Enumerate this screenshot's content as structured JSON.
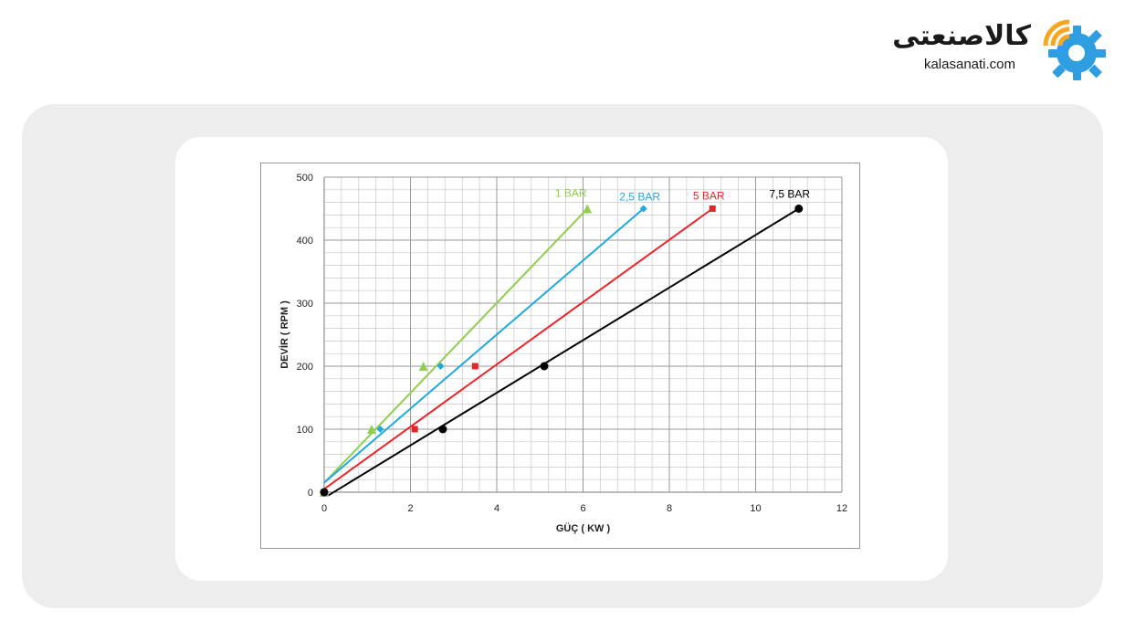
{
  "logo": {
    "name_fa": "کالاصنعتی",
    "domain": "kalasanati.com",
    "colors": {
      "orange": "#f5a623",
      "blue": "#2f9ee0"
    }
  },
  "chart_data": {
    "type": "scatter",
    "xlabel": "GÜÇ ( KW )",
    "ylabel": "DEVİR ( RPM )",
    "xlim": [
      0,
      12
    ],
    "ylim": [
      0,
      500
    ],
    "xticks": [
      0,
      2,
      4,
      6,
      8,
      10,
      12
    ],
    "yticks": [
      0,
      100,
      200,
      300,
      400,
      500
    ],
    "grid": true,
    "series": [
      {
        "name": "1 BAR",
        "color": "#8fce4f",
        "marker": "triangle",
        "points": [
          [
            0,
            0
          ],
          [
            1.1,
            100
          ],
          [
            2.3,
            200
          ],
          [
            6.1,
            450
          ]
        ],
        "trend": [
          [
            0,
            15
          ],
          [
            6.1,
            450
          ]
        ]
      },
      {
        "name": "2,5 BAR",
        "color": "#1fa9e1",
        "marker": "diamond",
        "points": [
          [
            0,
            0
          ],
          [
            1.3,
            100
          ],
          [
            2.7,
            200
          ],
          [
            7.4,
            450
          ]
        ],
        "trend": [
          [
            0,
            15
          ],
          [
            7.4,
            450
          ]
        ]
      },
      {
        "name": "5 BAR",
        "color": "#e8262a",
        "marker": "square",
        "points": [
          [
            0,
            0
          ],
          [
            2.1,
            100
          ],
          [
            3.5,
            200
          ],
          [
            9.0,
            450
          ]
        ],
        "trend": [
          [
            0,
            5
          ],
          [
            9.0,
            450
          ]
        ]
      },
      {
        "name": "7,5 BAR",
        "color": "#000000",
        "marker": "circle",
        "points": [
          [
            0,
            0
          ],
          [
            2.75,
            100
          ],
          [
            5.1,
            200
          ],
          [
            11.0,
            450
          ]
        ],
        "trend": [
          [
            0.1,
            -5
          ],
          [
            11.0,
            450
          ]
        ]
      }
    ]
  }
}
